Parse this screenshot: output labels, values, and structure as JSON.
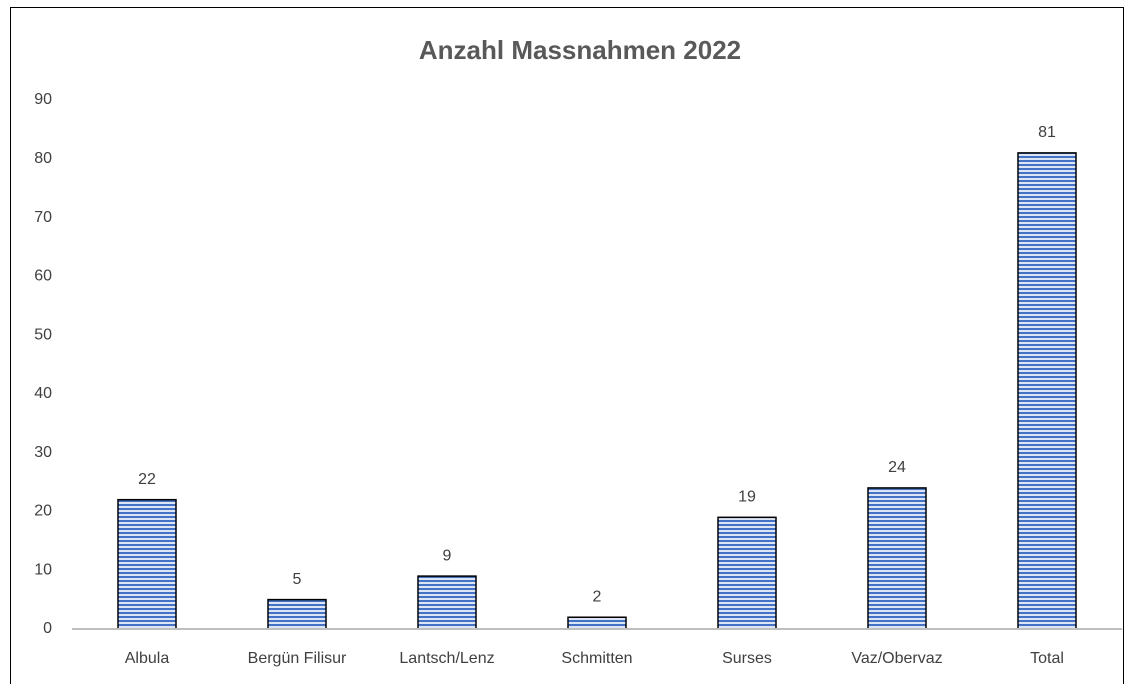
{
  "chart_data": {
    "type": "bar",
    "title": "Anzahl Massnahmen 2022",
    "categories": [
      "Albula",
      "Bergün Filisur",
      "Lantsch/Lenz",
      "Schmitten",
      "Surses",
      "Vaz/Obervaz",
      "Total"
    ],
    "values": [
      22,
      5,
      9,
      2,
      19,
      24,
      81
    ],
    "color": "#4472c4",
    "ylim": [
      0,
      90
    ],
    "yticks": [
      0,
      10,
      20,
      30,
      40,
      50,
      60,
      70,
      80,
      90
    ],
    "grid": false
  }
}
